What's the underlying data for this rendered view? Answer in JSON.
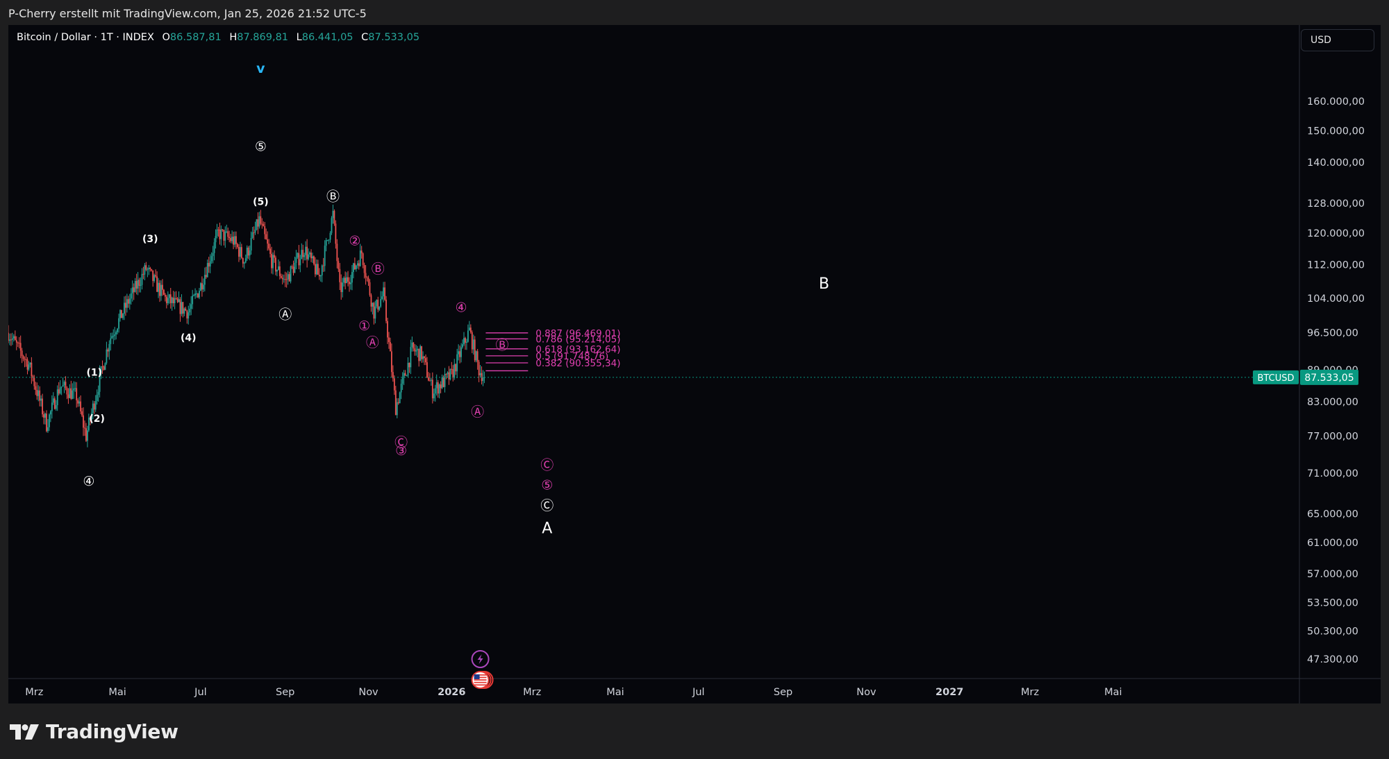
{
  "header": {
    "attribution": "P-Cherry erstellt mit TradingView.com, Jan 25, 2026 21:52 UTC-5"
  },
  "legend": {
    "symbol": "Bitcoin / Dollar · 1T · INDEX",
    "open_label": "O",
    "open": "86.587,81",
    "high_label": "H",
    "high": "87.869,81",
    "low_label": "L",
    "low": "86.441,05",
    "close_label": "C",
    "close": "87.533,05"
  },
  "currency": "USD",
  "brand": "TradingView",
  "colors": {
    "up": "#26a69a",
    "down": "#ef5350",
    "magenta": "#e040b0",
    "price_tag": "#089981",
    "cyan_marker": "#29b6f6"
  },
  "chart_data": {
    "type": "candlestick",
    "symbol": "BTCUSD",
    "interval": "1T",
    "y_scale": "log",
    "y_range": [
      44000,
      175000
    ],
    "y_ticks": [
      "160.000,00",
      "150.000,00",
      "140.000,00",
      "128.000,00",
      "120.000,00",
      "112.000,00",
      "104.000,00",
      "96.500,00",
      "89.000,00",
      "83.000,00",
      "77.000,00",
      "71.000,00",
      "65.000,00",
      "61.000,00",
      "57.000,00",
      "53.500,00",
      "50.300,00",
      "47.300,00"
    ],
    "y_tick_values": [
      160000,
      150000,
      140000,
      128000,
      120000,
      112000,
      104000,
      96500,
      89000,
      83000,
      77000,
      71000,
      65000,
      61000,
      57000,
      53500,
      50300,
      47300
    ],
    "x_ticks": [
      {
        "label": "Mrz",
        "date": "2025-03-01",
        "bold": false
      },
      {
        "label": "Mai",
        "date": "2025-05-01",
        "bold": false
      },
      {
        "label": "Jul",
        "date": "2025-07-01",
        "bold": false
      },
      {
        "label": "Sep",
        "date": "2025-09-01",
        "bold": false
      },
      {
        "label": "Nov",
        "date": "2025-11-01",
        "bold": false
      },
      {
        "label": "2026",
        "date": "2026-01-01",
        "bold": true
      },
      {
        "label": "Mrz",
        "date": "2026-03-01",
        "bold": false
      },
      {
        "label": "Mai",
        "date": "2026-05-01",
        "bold": false
      },
      {
        "label": "Jul",
        "date": "2026-07-01",
        "bold": false
      },
      {
        "label": "Sep",
        "date": "2026-09-01",
        "bold": false
      },
      {
        "label": "Nov",
        "date": "2026-11-01",
        "bold": false
      },
      {
        "label": "2027",
        "date": "2027-01-01",
        "bold": true
      },
      {
        "label": "Mrz",
        "date": "2027-03-01",
        "bold": false
      },
      {
        "label": "Mai",
        "date": "2027-05-01",
        "bold": false
      }
    ],
    "x_range": [
      "2025-02-10",
      "2027-09-14"
    ],
    "price_path": [
      [
        "2025-02-10",
        96500
      ],
      [
        "2025-02-25",
        90000
      ],
      [
        "2025-03-04",
        84000
      ],
      [
        "2025-03-10",
        79000
      ],
      [
        "2025-03-20",
        86000
      ],
      [
        "2025-04-01",
        84000
      ],
      [
        "2025-04-08",
        77000
      ],
      [
        "2025-04-15",
        84000
      ],
      [
        "2025-04-25",
        95000
      ],
      [
        "2025-05-10",
        104000
      ],
      [
        "2025-05-22",
        111000
      ],
      [
        "2025-06-05",
        104000
      ],
      [
        "2025-06-22",
        101000
      ],
      [
        "2025-07-01",
        107000
      ],
      [
        "2025-07-14",
        120000
      ],
      [
        "2025-07-25",
        118000
      ],
      [
        "2025-08-02",
        113000
      ],
      [
        "2025-08-13",
        123500
      ],
      [
        "2025-08-22",
        113000
      ],
      [
        "2025-09-01",
        108000
      ],
      [
        "2025-09-15",
        116000
      ],
      [
        "2025-09-26",
        109000
      ],
      [
        "2025-10-06",
        125000
      ],
      [
        "2025-10-11",
        106000
      ],
      [
        "2025-10-20",
        110000
      ],
      [
        "2025-10-27",
        115000
      ],
      [
        "2025-11-05",
        101000
      ],
      [
        "2025-11-12",
        105000
      ],
      [
        "2025-11-21",
        82000
      ],
      [
        "2025-12-03",
        93000
      ],
      [
        "2025-12-10",
        92000
      ],
      [
        "2025-12-18",
        85000
      ],
      [
        "2026-01-01",
        88000
      ],
      [
        "2026-01-14",
        97000
      ],
      [
        "2026-01-21",
        89000
      ],
      [
        "2026-01-25",
        87533
      ]
    ],
    "last_price": 87533.05,
    "last_price_label": "87.533,05",
    "last_price_symbol": "BTCUSD",
    "fib_levels": [
      {
        "ratio": "0.887",
        "value": 96469.01,
        "label": "0.887 (96.469,01)"
      },
      {
        "ratio": "0.786",
        "value": 95214.05,
        "label": "0.786 (95.214,05)"
      },
      {
        "ratio": "0.618",
        "value": 93162.64,
        "label": "0.618 (93.162,64)"
      },
      {
        "ratio": "0.5",
        "value": 91748.76,
        "label": "0.5 (91.748,76)"
      },
      {
        "ratio": "0.382",
        "value": 90355.34,
        "label": "0.382 (90.355,34)"
      }
    ],
    "fib_range": [
      "2026-01-26",
      "2026-02-26"
    ],
    "fib_bottom": 88800,
    "wave_labels": [
      {
        "text": "④",
        "date": "2025-04-10",
        "price": 69800,
        "color": "white"
      },
      {
        "text": "(1)",
        "date": "2025-04-14",
        "price": 88500,
        "color": "white"
      },
      {
        "text": "(2)",
        "date": "2025-04-16",
        "price": 80000,
        "color": "white"
      },
      {
        "text": "(3)",
        "date": "2025-05-25",
        "price": 118500,
        "color": "white"
      },
      {
        "text": "(4)",
        "date": "2025-06-22",
        "price": 95500,
        "color": "white"
      },
      {
        "text": "v",
        "date": "2025-08-14",
        "price": 172000,
        "color": "cyan"
      },
      {
        "text": "⑤",
        "date": "2025-08-14",
        "price": 145000,
        "color": "white"
      },
      {
        "text": "(5)",
        "date": "2025-08-14",
        "price": 128500,
        "color": "white"
      },
      {
        "text": "Ⓐ",
        "date": "2025-09-01",
        "price": 100500,
        "color": "white"
      },
      {
        "text": "Ⓑ",
        "date": "2025-10-06",
        "price": 130000,
        "color": "white"
      },
      {
        "text": "②",
        "date": "2025-10-22",
        "price": 118000,
        "color": "magenta"
      },
      {
        "text": "Ⓑ",
        "date": "2025-11-08",
        "price": 111000,
        "color": "magenta"
      },
      {
        "text": "①",
        "date": "2025-10-29",
        "price": 98000,
        "color": "magenta"
      },
      {
        "text": "Ⓐ",
        "date": "2025-11-04",
        "price": 94500,
        "color": "magenta"
      },
      {
        "text": "Ⓒ",
        "date": "2025-11-25",
        "price": 76000,
        "color": "magenta"
      },
      {
        "text": "③",
        "date": "2025-11-25",
        "price": 74600,
        "color": "magenta"
      },
      {
        "text": "④",
        "date": "2026-01-08",
        "price": 102000,
        "color": "magenta"
      },
      {
        "text": "Ⓑ",
        "date": "2026-02-07",
        "price": 94000,
        "color": "magenta"
      },
      {
        "text": "Ⓐ",
        "date": "2026-01-20",
        "price": 81200,
        "color": "magenta"
      },
      {
        "text": "Ⓒ",
        "date": "2026-03-12",
        "price": 72300,
        "color": "magenta"
      },
      {
        "text": "⑤",
        "date": "2026-03-12",
        "price": 69200,
        "color": "magenta"
      },
      {
        "text": "Ⓒ",
        "date": "2026-03-12",
        "price": 66200,
        "color": "white"
      },
      {
        "text": "A",
        "date": "2026-03-12",
        "price": 63000,
        "color": "white",
        "large": true
      },
      {
        "text": "B",
        "date": "2026-10-01",
        "price": 107500,
        "color": "white",
        "large": true
      }
    ],
    "event_icons": [
      {
        "name": "lightning-event",
        "date": "2026-01-22",
        "price": 47300
      },
      {
        "name": "us-flag-event",
        "date": "2026-01-22",
        "price": 45200
      }
    ]
  }
}
